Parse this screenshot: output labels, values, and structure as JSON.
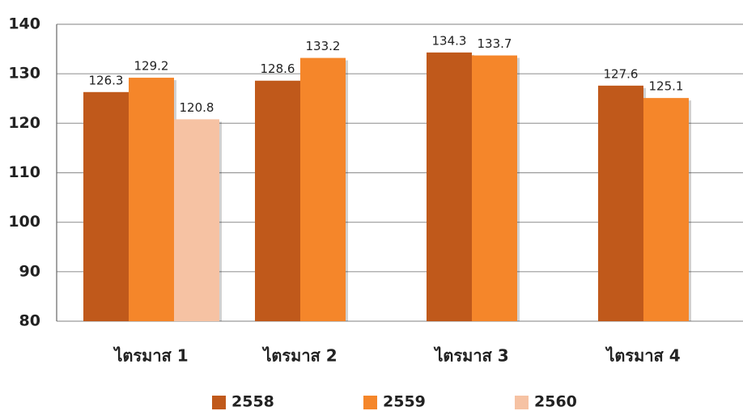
{
  "chart_data": {
    "type": "bar",
    "categories": [
      "ไตรมาส 1",
      "ไตรมาส 2",
      "ไตรมาส 3",
      "ไตรมาส 4"
    ],
    "series": [
      {
        "name": "2558",
        "color": "#c0591b",
        "values": [
          126.3,
          128.6,
          134.3,
          127.6
        ]
      },
      {
        "name": "2559",
        "color": "#f5862a",
        "values": [
          129.2,
          133.2,
          133.7,
          125.1
        ]
      },
      {
        "name": "2560",
        "color": "#f6c2a3",
        "values": [
          120.8,
          null,
          null,
          null
        ]
      }
    ],
    "ylim": [
      80,
      140
    ],
    "yticks": [
      80,
      90,
      100,
      110,
      120,
      130,
      140
    ],
    "grid": true,
    "legend": "bottom"
  }
}
